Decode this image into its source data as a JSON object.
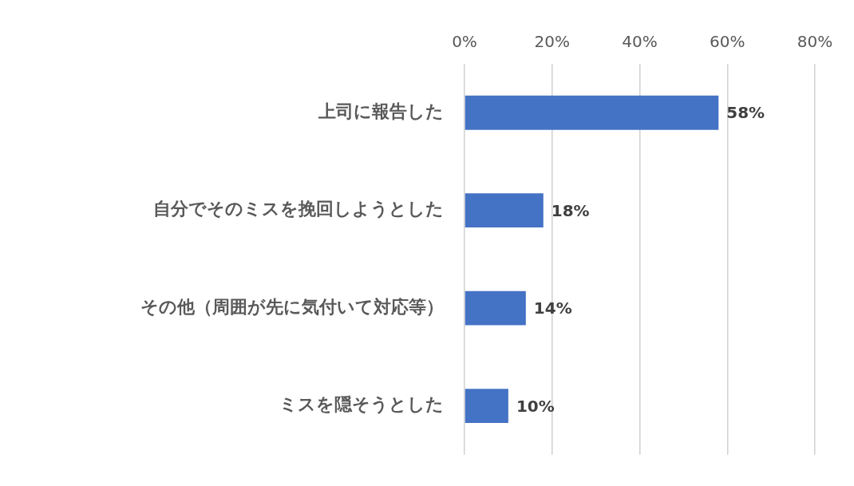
{
  "chart_data": {
    "type": "bar",
    "orientation": "horizontal",
    "categories": [
      "上司に報告した",
      "自分でそのミスを挽回しようとした",
      "その他（周囲が先に気付いて対応等）",
      "ミスを隠そうとした"
    ],
    "values": [
      58,
      18,
      14,
      10
    ],
    "value_labels": [
      "58%",
      "18%",
      "14%",
      "10%"
    ],
    "color": "#4472c4",
    "xlim": [
      0,
      80
    ],
    "xticks": [
      {
        "value": 0,
        "label": "0%"
      },
      {
        "value": 20,
        "label": "20%"
      },
      {
        "value": 40,
        "label": "40%"
      },
      {
        "value": 60,
        "label": "60%"
      },
      {
        "value": 80,
        "label": "80%"
      }
    ],
    "grid": "x",
    "legend": false
  }
}
